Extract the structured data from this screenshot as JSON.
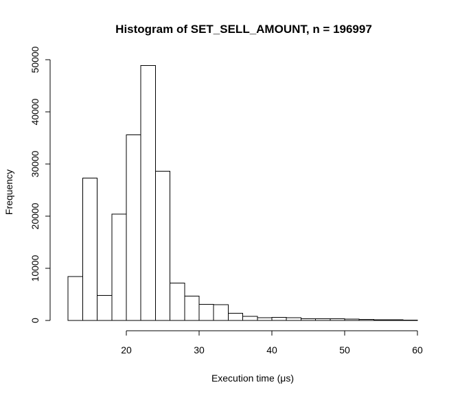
{
  "chart_data": {
    "type": "bar",
    "title": "Histogram of SET_SELL_AMOUNT, n = 196997",
    "xlabel": "Execution time (μs)",
    "ylabel": "Frequency",
    "bin_width": 2,
    "bins": [
      {
        "start": 12,
        "end": 14,
        "count": 8400
      },
      {
        "start": 14,
        "end": 16,
        "count": 27300
      },
      {
        "start": 16,
        "end": 18,
        "count": 4800
      },
      {
        "start": 18,
        "end": 20,
        "count": 20400
      },
      {
        "start": 20,
        "end": 22,
        "count": 35600
      },
      {
        "start": 22,
        "end": 24,
        "count": 48900
      },
      {
        "start": 24,
        "end": 26,
        "count": 28600
      },
      {
        "start": 26,
        "end": 28,
        "count": 7200
      },
      {
        "start": 28,
        "end": 30,
        "count": 4700
      },
      {
        "start": 30,
        "end": 32,
        "count": 3100
      },
      {
        "start": 32,
        "end": 34,
        "count": 3000
      },
      {
        "start": 34,
        "end": 36,
        "count": 1400
      },
      {
        "start": 36,
        "end": 38,
        "count": 800
      },
      {
        "start": 38,
        "end": 40,
        "count": 500
      },
      {
        "start": 40,
        "end": 42,
        "count": 600
      },
      {
        "start": 42,
        "end": 44,
        "count": 500
      },
      {
        "start": 44,
        "end": 46,
        "count": 300
      },
      {
        "start": 46,
        "end": 48,
        "count": 350
      },
      {
        "start": 48,
        "end": 50,
        "count": 300
      },
      {
        "start": 50,
        "end": 52,
        "count": 250
      },
      {
        "start": 52,
        "end": 54,
        "count": 180
      },
      {
        "start": 54,
        "end": 56,
        "count": 150
      },
      {
        "start": 56,
        "end": 58,
        "count": 100
      },
      {
        "start": 58,
        "end": 60,
        "count": 80
      }
    ],
    "x_ticks": [
      20,
      30,
      40,
      50,
      60
    ],
    "y_ticks": [
      0,
      10000,
      20000,
      30000,
      40000,
      50000
    ],
    "xlim": [
      20,
      60
    ],
    "ylim": [
      0,
      50000
    ],
    "grid": false,
    "bar_fill": "#ffffff",
    "bar_stroke": "#000000"
  }
}
